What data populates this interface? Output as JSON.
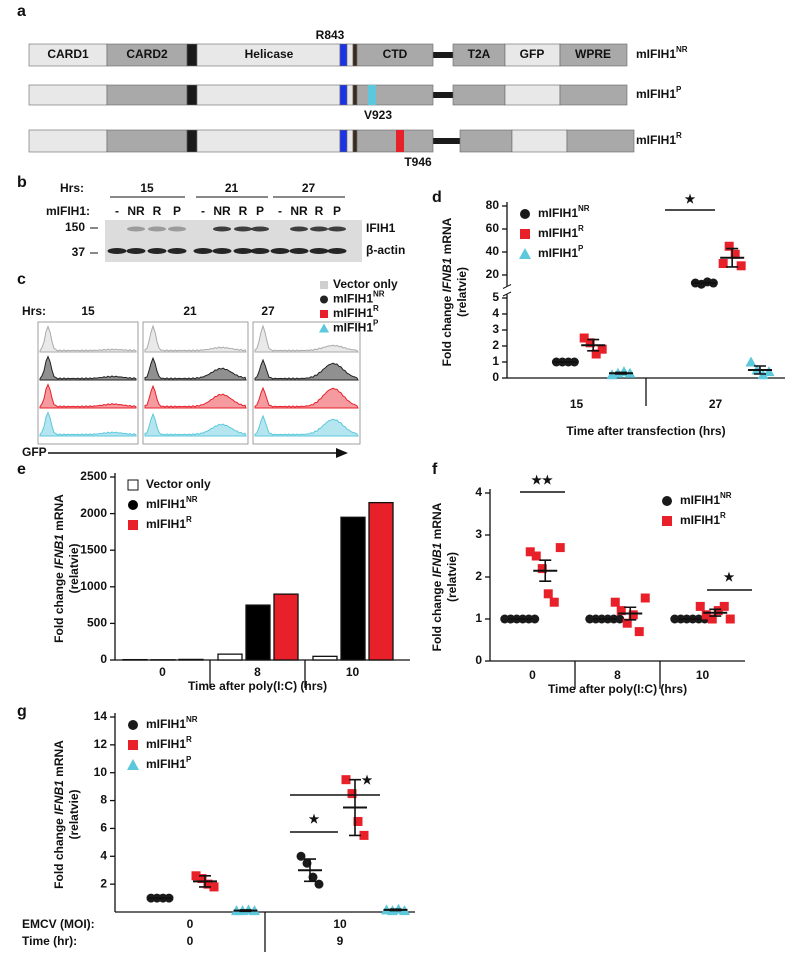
{
  "construct_diagram": {
    "label": "a",
    "domains": [
      "CARD1",
      "CARD2",
      "Helicase",
      "CTD",
      "T2A",
      "GFP",
      "WPRE"
    ],
    "constructs": [
      {
        "name": "mIFIH1",
        "name_superscript": "NR",
        "mutation": "R843"
      },
      {
        "name": "mIFIH1",
        "name_superscript": "P",
        "mutation": "V923"
      },
      {
        "name": "mIFIH1",
        "name_superscript": "R",
        "mutation": "T946"
      }
    ]
  },
  "blot": {
    "label": "b",
    "hrs_label": "Hrs:",
    "timepoints": [
      "15",
      "21",
      "27"
    ],
    "lane_label": "mIFIH1:",
    "lanes": [
      "-",
      "NR",
      "R",
      "P"
    ],
    "bands": [
      "IFIH1",
      "β-actin"
    ],
    "markers": [
      "150",
      "37"
    ]
  },
  "flow": {
    "label": "c",
    "hrs_label": "Hrs:",
    "timepoints": [
      "15",
      "21",
      "27"
    ],
    "xlabel": "GFP",
    "legend": [
      {
        "name": "Vector only",
        "color": "#cfcfcf",
        "marker": "square"
      },
      {
        "name": "mIFIH1",
        "name_superscript": "NR",
        "color": "#222222",
        "marker": "circle"
      },
      {
        "name": "mIFIH1",
        "name_superscript": "R",
        "color": "#e8202a",
        "marker": "square"
      },
      {
        "name": "mIFIH1",
        "name_superscript": "P",
        "color": "#5bc8dc",
        "marker": "triangle"
      }
    ]
  },
  "chart_data": [
    {
      "label": "d",
      "type": "dot_plot",
      "ylabel": {
        "prefix": "Fold change ",
        "italic": "IFNB1",
        "suffix": " mRNA",
        "line2": "(relatvie)"
      },
      "xlabel": "Time after transfection (hrs)",
      "categories": [
        "15",
        "27"
      ],
      "ylim": [
        0,
        5
      ],
      "yticks": [
        0,
        1,
        2,
        3,
        4,
        5
      ],
      "ylim_upper": [
        10,
        80
      ],
      "yticks_upper": [
        20,
        40,
        60,
        80
      ],
      "legend": "upper left",
      "annotations": [
        "★"
      ],
      "series": [
        {
          "name": "mIFIH1",
          "name_superscript": "NR",
          "color": "#1a1a1a",
          "marker": "circle",
          "values": [
            [
              1,
              1,
              1,
              1
            ],
            [
              13,
              12,
              14,
              13
            ]
          ],
          "means": [
            1,
            13
          ],
          "errors": [
            0,
            0.4
          ]
        },
        {
          "name": "mIFIH1",
          "name_superscript": "R",
          "color": "#e8202a",
          "marker": "square",
          "values": [
            [
              2.5,
              2.2,
              1.5,
              1.8
            ],
            [
              30,
              45,
              38,
              28
            ]
          ],
          "means": [
            2.05,
            35
          ],
          "errors": [
            0.35,
            8
          ]
        },
        {
          "name": "mIFIH1",
          "name_superscript": "P",
          "color": "#5bc8dc",
          "marker": "triangle",
          "values": [
            [
              0.2,
              0.3,
              0.4,
              0.3
            ],
            [
              1.0,
              0.5,
              0.2,
              0.4
            ]
          ],
          "means": [
            0.3,
            0.5
          ],
          "errors": [
            0.05,
            0.25
          ]
        }
      ]
    },
    {
      "label": "e",
      "type": "bar",
      "ylabel": {
        "prefix": "Fold change ",
        "italic": "IFNB1",
        "suffix": " mRNA",
        "line2": "(relatvie)"
      },
      "xlabel": "Time after poly(I:C) (hrs)",
      "categories": [
        "0",
        "8",
        "10"
      ],
      "ylim": [
        0,
        2500
      ],
      "yticks": [
        0,
        500,
        1000,
        1500,
        2000,
        2500
      ],
      "legend": "upper left",
      "series": [
        {
          "name": "Vector only",
          "color": "#ffffff",
          "marker": "square",
          "values": [
            5,
            80,
            50
          ]
        },
        {
          "name": "mIFIH1",
          "name_superscript": "NR",
          "color": "#000000",
          "marker": "circle",
          "values": [
            3,
            750,
            1950
          ]
        },
        {
          "name": "mIFIH1",
          "name_superscript": "R",
          "color": "#e8202a",
          "marker": "square",
          "values": [
            8,
            900,
            2150
          ]
        }
      ]
    },
    {
      "label": "f",
      "type": "dot_plot",
      "ylabel": {
        "prefix": "Fold change ",
        "italic": "IFNB1",
        "suffix": " mRNA",
        "line2": "(relatvie)"
      },
      "xlabel": "Time after poly(I:C) (hrs)",
      "categories": [
        "0",
        "8",
        "10"
      ],
      "ylim": [
        0,
        4
      ],
      "yticks": [
        0,
        1,
        2,
        3,
        4
      ],
      "legend": "upper right",
      "annotations": [
        "★★",
        "★"
      ],
      "series": [
        {
          "name": "mIFIH1",
          "name_superscript": "NR",
          "color": "#1a1a1a",
          "marker": "circle",
          "values": [
            [
              1,
              1,
              1,
              1,
              1,
              1
            ],
            [
              1,
              1,
              1,
              1,
              1,
              1
            ],
            [
              1,
              1,
              1,
              1,
              1,
              1
            ]
          ],
          "means": [
            1,
            1,
            1
          ],
          "errors": [
            0,
            0,
            0
          ]
        },
        {
          "name": "mIFIH1",
          "name_superscript": "R",
          "color": "#e8202a",
          "marker": "square",
          "values": [
            [
              2.6,
              2.5,
              2.2,
              1.6,
              1.4,
              2.7
            ],
            [
              1.4,
              1.2,
              0.9,
              1.1,
              0.7,
              1.5
            ],
            [
              1.3,
              1.1,
              1.0,
              1.2,
              1.3,
              1.0
            ]
          ],
          "means": [
            2.15,
            1.13,
            1.15
          ],
          "errors": [
            0.25,
            0.15,
            0.08
          ]
        }
      ]
    },
    {
      "label": "g",
      "type": "dot_plot",
      "ylabel": {
        "prefix": "Fold change ",
        "italic": "IFNB1",
        "suffix": " mRNA",
        "line2": "(relatvie)"
      },
      "categories": [
        "0",
        "10"
      ],
      "categories_row2": [
        "0",
        "9"
      ],
      "category_row_labels": [
        "EMCV (MOI):",
        "Time (hr):"
      ],
      "ylim": [
        0,
        14
      ],
      "yticks": [
        2,
        4,
        6,
        8,
        10,
        12,
        14
      ],
      "legend": "upper left",
      "annotations": [
        "★",
        "★"
      ],
      "series": [
        {
          "name": "mIFIH1",
          "name_superscript": "NR",
          "color": "#1a1a1a",
          "marker": "circle",
          "values": [
            [
              1,
              1,
              1,
              1
            ],
            [
              4.0,
              3.5,
              2.5,
              2.0
            ]
          ],
          "means": [
            1,
            3.0
          ],
          "errors": [
            0,
            0.8
          ]
        },
        {
          "name": "mIFIH1",
          "name_superscript": "R",
          "color": "#e8202a",
          "marker": "square",
          "values": [
            [
              2.6,
              2.4,
              2.0,
              1.8
            ],
            [
              9.5,
              8.5,
              6.5,
              5.5
            ]
          ],
          "means": [
            2.2,
            7.5
          ],
          "errors": [
            0.4,
            2
          ]
        },
        {
          "name": "mIFIH1",
          "name_superscript": "P",
          "color": "#5bc8dc",
          "marker": "triangle",
          "values": [
            [
              0.1,
              0.1,
              0.15,
              0.1
            ],
            [
              0.15,
              0.1,
              0.2,
              0.1
            ]
          ],
          "means": [
            0.1,
            0.15
          ],
          "errors": [
            0.05,
            0.05
          ]
        }
      ]
    }
  ]
}
